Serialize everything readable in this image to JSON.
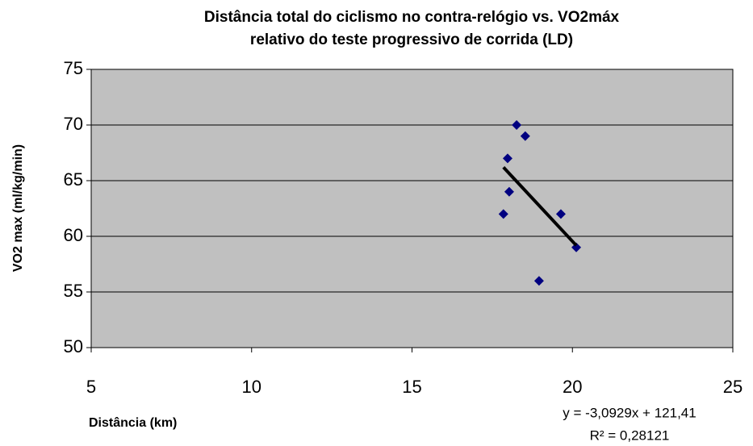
{
  "chart_data": {
    "type": "scatter",
    "title": [
      "Distância total do ciclismo no contra-relógio vs. VO2máx",
      "relativo do teste progressivo de corrida (LD)"
    ],
    "x_label": "Distância (km)",
    "y_label": "VO2 max (ml/kg/min)",
    "x": [
      17.85,
      17.98,
      18.03,
      18.26,
      18.53,
      18.96,
      19.64,
      20.12
    ],
    "values": [
      62,
      67,
      64,
      70,
      69,
      56,
      62,
      59
    ],
    "color": "#000080",
    "xlim": [
      5,
      25
    ],
    "xticks": [
      5,
      10,
      15,
      20,
      25
    ],
    "ylim": [
      50,
      75
    ],
    "yticks": [
      50,
      55,
      60,
      65,
      70,
      75
    ],
    "grid": true,
    "plot_background": "#c0c0c0",
    "trendline": {
      "slope": -3.0929,
      "intercept": 121.41,
      "color": "#000000",
      "equation": "y = -3,0929x + 121,41",
      "r2": "R² = 0,28121"
    }
  }
}
